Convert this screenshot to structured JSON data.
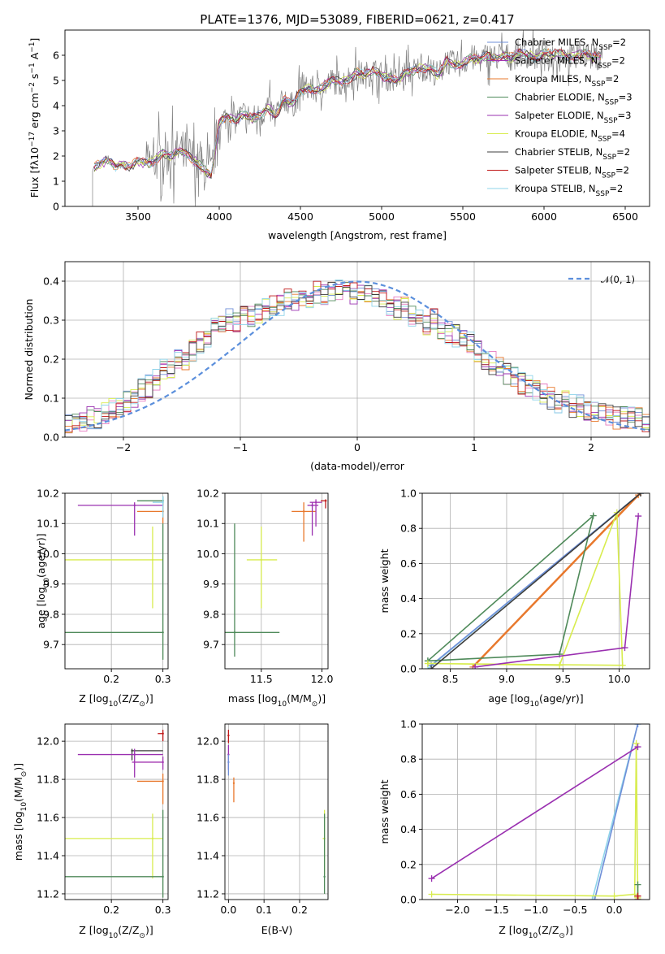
{
  "title": "PLATE=1376, MJD=53089, FIBERID=0621, z=0.417",
  "colors": {
    "chabrier_miles": "#6f8fd8",
    "salpeter_miles": "#a236b1",
    "kroupa_miles": "#e8782c",
    "chabrier_elodie": "#4f8a5a",
    "salpeter_elodie": "#9a30b0",
    "kroupa_elodie": "#d8ec4e",
    "chabrier_stelib": "#3d3d3d",
    "salpeter_stelib": "#c01818",
    "kroupa_stelib": "#8fd4ea",
    "data": "#808080",
    "gaussian": "#5b8fdc",
    "grid": "#b0b0b0"
  },
  "chart_data": [
    {
      "type": "line",
      "id": "spectrum",
      "title": "PLATE=1376, MJD=53089, FIBERID=0621, z=0.417",
      "xlabel": "wavelength [Angstrom, rest frame]",
      "ylabel_parts": [
        "Flux [f",
        "λ",
        "10",
        "−17",
        " erg cm",
        "−2",
        " s",
        "−1",
        " A",
        "−1",
        "]"
      ],
      "xlim": [
        3050,
        6650
      ],
      "ylim": [
        0,
        7
      ],
      "xticks": [
        "3500",
        "4000",
        "4500",
        "5000",
        "5500",
        "6000",
        "6500"
      ],
      "yticks": [
        "0",
        "1",
        "2",
        "3",
        "4",
        "5",
        "6"
      ],
      "grid": false,
      "legend_position": "upper right",
      "x": [
        3220,
        3280,
        3320,
        3360,
        3400,
        3450,
        3500,
        3550,
        3600,
        3650,
        3700,
        3750,
        3800,
        3850,
        3900,
        3950,
        4000,
        4050,
        4100,
        4150,
        4200,
        4250,
        4300,
        4350,
        4400,
        4450,
        4500,
        4550,
        4600,
        4650,
        4700,
        4750,
        4800,
        4850,
        4900,
        4950,
        5000,
        5050,
        5100,
        5150,
        5200,
        5250,
        5300,
        5350,
        5400,
        5450,
        5500,
        5550,
        5600,
        5650,
        5700,
        5750,
        5800,
        5850,
        5900,
        5950,
        6000,
        6050,
        6100,
        6150,
        6200,
        6250,
        6300,
        6350
      ],
      "model_flux": [
        1.5,
        1.75,
        1.85,
        1.6,
        1.7,
        1.55,
        1.8,
        1.7,
        1.75,
        2.1,
        2.0,
        2.2,
        2.1,
        1.8,
        1.5,
        1.2,
        3.3,
        3.6,
        3.4,
        3.7,
        3.5,
        3.6,
        3.9,
        3.6,
        4.3,
        4.0,
        4.6,
        4.7,
        4.6,
        4.8,
        5.0,
        4.9,
        5.1,
        5.3,
        5.2,
        5.4,
        5.2,
        5.1,
        5.0,
        5.3,
        5.4,
        5.5,
        5.5,
        5.2,
        5.8,
        5.6,
        5.7,
        5.9,
        5.8,
        6.0,
        5.9,
        6.0,
        5.9,
        6.1,
        6.0,
        5.9,
        6.1,
        6.0,
        6.1,
        5.9,
        6.0,
        6.1,
        5.9,
        6.0
      ],
      "series": [
        {
          "name": "Chabrier MILES, N",
          "sub": "SSP",
          "suffix": "=2",
          "color_key": "chabrier_miles"
        },
        {
          "name": "Salpeter MILES, N",
          "sub": "SSP",
          "suffix": "=2",
          "color_key": "salpeter_miles"
        },
        {
          "name": "Kroupa MILES, N",
          "sub": "SSP",
          "suffix": "=2",
          "color_key": "kroupa_miles"
        },
        {
          "name": "Chabrier ELODIE, N",
          "sub": "SSP",
          "suffix": "=3",
          "color_key": "chabrier_elodie"
        },
        {
          "name": "Salpeter ELODIE, N",
          "sub": "SSP",
          "suffix": "=3",
          "color_key": "salpeter_elodie"
        },
        {
          "name": "Kroupa ELODIE, N",
          "sub": "SSP",
          "suffix": "=4",
          "color_key": "kroupa_elodie"
        },
        {
          "name": "Chabrier STELIB, N",
          "sub": "SSP",
          "suffix": "=2",
          "color_key": "chabrier_stelib"
        },
        {
          "name": "Salpeter STELIB, N",
          "sub": "SSP",
          "suffix": "=2",
          "color_key": "salpeter_stelib"
        },
        {
          "name": "Kroupa STELIB, N",
          "sub": "SSP",
          "suffix": "=2",
          "color_key": "kroupa_stelib"
        }
      ]
    },
    {
      "type": "histogram",
      "id": "residuals",
      "xlabel": "(data-model)/error",
      "ylabel": "Normed distribution",
      "xlim": [
        -2.5,
        2.5
      ],
      "ylim": [
        0,
        0.45
      ],
      "xticks": [
        "−2",
        "−1",
        "0",
        "1",
        "2"
      ],
      "yticks": [
        "0.0",
        "0.1",
        "0.2",
        "0.3",
        "0.4"
      ],
      "grid": true,
      "legend_position": "upper right",
      "legend": "𝒩(0, 1)",
      "bin_width": 0.1,
      "bin_start": -2.5,
      "base_profile": [
        0.04,
        0.045,
        0.04,
        0.05,
        0.045,
        0.06,
        0.07,
        0.08,
        0.09,
        0.1,
        0.12,
        0.13,
        0.15,
        0.17,
        0.18,
        0.2,
        0.2,
        0.22,
        0.24,
        0.26,
        0.28,
        0.29,
        0.3,
        0.3,
        0.31,
        0.31,
        0.32,
        0.33,
        0.34,
        0.34,
        0.35,
        0.35,
        0.36,
        0.36,
        0.37,
        0.37,
        0.37,
        0.38,
        0.37,
        0.37,
        0.36,
        0.36,
        0.35,
        0.35,
        0.34,
        0.33,
        0.33,
        0.31,
        0.3,
        0.29,
        0.3,
        0.28,
        0.27,
        0.26,
        0.25,
        0.24,
        0.22,
        0.2,
        0.19,
        0.18,
        0.16,
        0.15,
        0.14,
        0.13,
        0.12,
        0.11,
        0.1,
        0.09,
        0.09,
        0.08,
        0.08,
        0.07,
        0.07,
        0.06,
        0.06,
        0.05,
        0.05,
        0.05,
        0.05,
        0.04
      ],
      "gaussian": {
        "mu": 0,
        "sigma": 1
      }
    },
    {
      "type": "scatter",
      "id": "age_vs_Z",
      "xlabel_parts": [
        "Z [log",
        "10",
        "(Z/Z",
        "⊙",
        ")]"
      ],
      "ylabel_parts": [
        "age  [log",
        "10",
        "(age/yr)]"
      ],
      "xlim": [
        0.11,
        0.31
      ],
      "ylim": [
        9.62,
        10.2
      ],
      "xticks": [
        "0.2",
        "0.3"
      ],
      "yticks": [
        "9.7",
        "9.8",
        "9.9",
        "10.0",
        "10.1",
        "10.2"
      ],
      "grid": true,
      "points": [
        {
          "x": 0.3,
          "y": 10.175,
          "xerr": [
            0.25,
            0.3
          ],
          "yerr": [
            10.16,
            10.19
          ],
          "color_key": "chabrier_elodie"
        },
        {
          "x": 0.245,
          "y": 10.16,
          "xerr": [
            0.135,
            0.3
          ],
          "yerr": [
            10.06,
            10.17
          ],
          "color_key": "salpeter_elodie"
        },
        {
          "x": 0.3,
          "y": 10.14,
          "xerr": [
            0.25,
            0.3
          ],
          "yerr": [
            10.1,
            10.17
          ],
          "color_key": "kroupa_miles"
        },
        {
          "x": 0.28,
          "y": 9.98,
          "xerr": [
            0.11,
            0.3
          ],
          "yerr": [
            9.82,
            10.09
          ],
          "color_key": "kroupa_elodie"
        },
        {
          "x": 0.3,
          "y": 9.74,
          "xerr": [
            0.11,
            0.3
          ],
          "yerr": [
            9.65,
            10.1
          ],
          "color_key": "chabrier_elodie"
        },
        {
          "x": 0.3,
          "y": 10.17,
          "xerr": [
            0.28,
            0.3
          ],
          "yerr": [
            10.12,
            10.19
          ],
          "color_key": "kroupa_stelib"
        }
      ]
    },
    {
      "type": "scatter",
      "id": "age_vs_mass",
      "xlabel_parts": [
        "mass [log",
        "10",
        "(M/M",
        "⊙",
        ")]"
      ],
      "xlim": [
        11.2,
        12.05
      ],
      "ylim": [
        9.62,
        10.2
      ],
      "xticks": [
        "11.5",
        "12.0"
      ],
      "yticks": [
        "9.7",
        "9.8",
        "9.9",
        "10.0",
        "10.1",
        "10.2"
      ],
      "grid": true,
      "points": [
        {
          "x": 11.28,
          "y": 9.74,
          "xerr": [
            11.15,
            11.65
          ],
          "yerr": [
            9.66,
            10.1
          ],
          "color_key": "chabrier_elodie"
        },
        {
          "x": 11.5,
          "y": 9.98,
          "xerr": [
            11.38,
            11.63
          ],
          "yerr": [
            9.82,
            10.09
          ],
          "color_key": "kroupa_elodie"
        },
        {
          "x": 11.85,
          "y": 10.14,
          "xerr": [
            11.75,
            11.95
          ],
          "yerr": [
            10.04,
            10.17
          ],
          "color_key": "kroupa_miles"
        },
        {
          "x": 11.92,
          "y": 10.16,
          "xerr": [
            11.88,
            11.97
          ],
          "yerr": [
            10.06,
            10.17
          ],
          "color_key": "salpeter_elodie"
        },
        {
          "x": 11.95,
          "y": 10.17,
          "xerr": [
            11.9,
            12.0
          ],
          "yerr": [
            10.09,
            10.18
          ],
          "color_key": "salpeter_miles"
        },
        {
          "x": 12.03,
          "y": 10.175,
          "xerr": [
            11.99,
            12.04
          ],
          "yerr": [
            10.15,
            10.18
          ],
          "color_key": "salpeter_stelib"
        }
      ]
    },
    {
      "type": "line",
      "id": "mass_weight_vs_age",
      "xlabel_parts": [
        "age  [log",
        "10",
        "(age/yr)]"
      ],
      "ylabel": "mass weight",
      "xlim": [
        8.25,
        10.27
      ],
      "ylim": [
        0,
        1
      ],
      "xticks": [
        "8.5",
        "9.0",
        "9.5",
        "10.0"
      ],
      "yticks": [
        "0.0",
        "0.2",
        "0.4",
        "0.6",
        "0.8",
        "1.0"
      ],
      "grid": true,
      "series": [
        {
          "color_key": "kroupa_stelib",
          "x": [
            8.3,
            10.19
          ],
          "y": [
            0.0,
            1.0
          ]
        },
        {
          "color_key": "chabrier_miles",
          "x": [
            8.33,
            10.19
          ],
          "y": [
            0.02,
            1.0
          ]
        },
        {
          "color_key": "kroupa_miles",
          "x": [
            8.7,
            10.17
          ],
          "y": [
            0.01,
            0.99
          ]
        },
        {
          "color_key": "chabrier_elodie",
          "x": [
            8.3,
            9.47,
            9.77,
            8.3
          ],
          "y": [
            0.045,
            0.083,
            0.872,
            0.045
          ]
        },
        {
          "color_key": "kroupa_elodie",
          "x": [
            8.3,
            9.47,
            9.98,
            10.03,
            8.3
          ],
          "y": [
            0.03,
            0.02,
            0.89,
            0.02,
            0.03
          ]
        },
        {
          "color_key": "salpeter_elodie",
          "x": [
            8.72,
            10.05,
            10.17
          ],
          "y": [
            0.01,
            0.12,
            0.87
          ]
        },
        {
          "color_key": "chabrier_stelib",
          "x": [
            8.33,
            10.19
          ],
          "y": [
            0.0,
            1.0
          ]
        }
      ]
    },
    {
      "type": "scatter",
      "id": "mass_vs_Z",
      "xlabel_parts": [
        "Z [log",
        "10",
        "(Z/Z",
        "⊙",
        ")]"
      ],
      "ylabel_parts": [
        "mass [log",
        "10",
        "(M/M",
        "⊙",
        ")]"
      ],
      "xlim": [
        0.11,
        0.31
      ],
      "ylim": [
        11.17,
        12.09
      ],
      "xticks": [
        "0.2",
        "0.3"
      ],
      "yticks": [
        "11.2",
        "11.4",
        "11.6",
        "11.8",
        "12.0"
      ],
      "grid": true,
      "points": [
        {
          "x": 0.3,
          "y": 12.04,
          "xerr": [
            0.29,
            0.3
          ],
          "yerr": [
            12.0,
            12.06
          ],
          "color_key": "salpeter_stelib"
        },
        {
          "x": 0.24,
          "y": 11.95,
          "xerr": [
            0.24,
            0.3
          ],
          "yerr": [
            11.9,
            11.96
          ],
          "color_key": "chabrier_stelib"
        },
        {
          "x": 0.245,
          "y": 11.93,
          "xerr": [
            0.135,
            0.3
          ],
          "yerr": [
            11.81,
            11.96
          ],
          "color_key": "salpeter_elodie"
        },
        {
          "x": 0.3,
          "y": 11.89,
          "xerr": [
            0.24,
            0.3
          ],
          "yerr": [
            11.85,
            11.92
          ],
          "color_key": "salpeter_miles"
        },
        {
          "x": 0.3,
          "y": 11.79,
          "xerr": [
            0.25,
            0.3
          ],
          "yerr": [
            11.67,
            11.83
          ],
          "color_key": "kroupa_miles"
        },
        {
          "x": 0.28,
          "y": 11.49,
          "xerr": [
            0.11,
            0.3
          ],
          "yerr": [
            11.28,
            11.62
          ],
          "color_key": "kroupa_elodie"
        },
        {
          "x": 0.3,
          "y": 11.29,
          "xerr": [
            0.11,
            0.3
          ],
          "yerr": [
            11.18,
            11.64
          ],
          "color_key": "chabrier_elodie"
        }
      ]
    },
    {
      "type": "scatter",
      "id": "mass_vs_ebv",
      "xlabel": "E(B-V)",
      "xlim": [
        -0.01,
        0.28
      ],
      "ylim": [
        11.17,
        12.09
      ],
      "xticks": [
        "0.0",
        "0.1",
        "0.2"
      ],
      "yticks": [
        "11.2",
        "11.4",
        "11.6",
        "11.8",
        "12.0"
      ],
      "grid": true,
      "points": [
        {
          "x": 0.0,
          "y": 12.03,
          "xerr": [
            0.0,
            0.0
          ],
          "yerr": [
            11.99,
            12.06
          ],
          "color_key": "salpeter_stelib"
        },
        {
          "x": 0.0,
          "y": 11.93,
          "xerr": [
            0.0,
            0.0
          ],
          "yerr": [
            11.85,
            11.98
          ],
          "color_key": "salpeter_elodie"
        },
        {
          "x": 0.0,
          "y": 11.89,
          "xerr": [
            0.0,
            0.0
          ],
          "yerr": [
            11.82,
            11.93
          ],
          "color_key": "chabrier_miles"
        },
        {
          "x": 0.015,
          "y": 11.78,
          "xerr": [
            0.015,
            0.015
          ],
          "yerr": [
            11.68,
            11.81
          ],
          "color_key": "kroupa_miles"
        },
        {
          "x": 0.27,
          "y": 11.49,
          "xerr": [
            0.265,
            0.27
          ],
          "yerr": [
            11.3,
            11.64
          ],
          "color_key": "kroupa_elodie"
        },
        {
          "x": 0.27,
          "y": 11.29,
          "xerr": [
            0.27,
            0.27
          ],
          "yerr": [
            11.2,
            11.62
          ],
          "color_key": "chabrier_elodie"
        }
      ]
    },
    {
      "type": "line",
      "id": "mass_weight_vs_Z",
      "xlabel_parts": [
        "Z [log",
        "10",
        "(Z/Z",
        "⊙",
        ")]"
      ],
      "ylabel": "mass weight",
      "xlim": [
        -2.45,
        0.45
      ],
      "ylim": [
        0,
        1
      ],
      "xticks": [
        "−2.0",
        "−1.5",
        "−1.0",
        "−0.5",
        "0.0"
      ],
      "yticks": [
        "0.0",
        "0.2",
        "0.4",
        "0.6",
        "0.8",
        "1.0"
      ],
      "grid": true,
      "series": [
        {
          "color_key": "kroupa_stelib",
          "x": [
            -0.28,
            0.3
          ],
          "y": [
            0.0,
            1.0
          ]
        },
        {
          "color_key": "chabrier_miles",
          "x": [
            -0.25,
            0.3
          ],
          "y": [
            0.0,
            1.0
          ]
        },
        {
          "color_key": "kroupa_elodie",
          "x": [
            -2.33,
            0.0,
            0.26,
            0.28,
            0.3
          ],
          "y": [
            0.03,
            0.02,
            0.03,
            0.89,
            0.01
          ]
        },
        {
          "color_key": "salpeter_elodie",
          "x": [
            -2.33,
            0.3
          ],
          "y": [
            0.12,
            0.87
          ]
        },
        {
          "color_key": "chabrier_elodie",
          "x": [
            0.3,
            0.3
          ],
          "y": [
            0.0,
            0.085
          ]
        },
        {
          "color_key": "salpeter_stelib",
          "x": [
            0.3,
            0.3
          ],
          "y": [
            0.0,
            0.02
          ]
        }
      ]
    }
  ]
}
